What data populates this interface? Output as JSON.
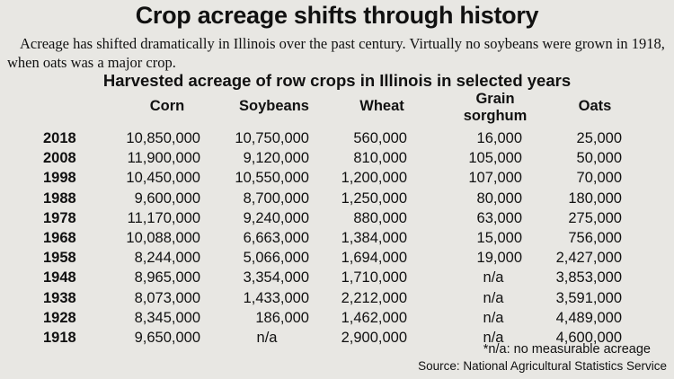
{
  "title": "Crop acreage shifts through history",
  "subtitle": "Acreage has shifted dramatically in Illinois over the past century. Virtually no soybeans were grown in 1918, when oats was a major crop.",
  "chart_data": {
    "type": "table",
    "title": "Harvested acreage of row crops in Illinois in selected years",
    "columns": [
      "Corn",
      "Soybeans",
      "Wheat",
      "Grain sorghum",
      "Oats"
    ],
    "rows": [
      {
        "year": "2018",
        "values": [
          "10,850,000",
          "10,750,000",
          "560,000",
          "16,000",
          "25,000"
        ]
      },
      {
        "year": "2008",
        "values": [
          "11,900,000",
          "9,120,000",
          "810,000",
          "105,000",
          "50,000"
        ]
      },
      {
        "year": "1998",
        "values": [
          "10,450,000",
          "10,550,000",
          "1,200,000",
          "107,000",
          "70,000"
        ]
      },
      {
        "year": "1988",
        "values": [
          "9,600,000",
          "8,700,000",
          "1,250,000",
          "80,000",
          "180,000"
        ]
      },
      {
        "year": "1978",
        "values": [
          "11,170,000",
          "9,240,000",
          "880,000",
          "63,000",
          "275,000"
        ]
      },
      {
        "year": "1968",
        "values": [
          "10,088,000",
          "6,663,000",
          "1,384,000",
          "15,000",
          "756,000"
        ]
      },
      {
        "year": "1958",
        "values": [
          "8,244,000",
          "5,066,000",
          "1,694,000",
          "19,000",
          "2,427,000"
        ]
      },
      {
        "year": "1948",
        "values": [
          "8,965,000",
          "3,354,000",
          "1,710,000",
          "n/a",
          "3,853,000"
        ]
      },
      {
        "year": "1938",
        "values": [
          "8,073,000",
          "1,433,000",
          "2,212,000",
          "n/a",
          "3,591,000"
        ]
      },
      {
        "year": "1928",
        "values": [
          "8,345,000",
          "186,000",
          "1,462,000",
          "n/a",
          "4,489,000"
        ]
      },
      {
        "year": "1918",
        "values": [
          "9,650,000",
          "n/a",
          "2,900,000",
          "n/a",
          "4,600,000"
        ]
      }
    ],
    "footnote": "*n/a: no measurable acreage",
    "source": "Source: National Agricultural Statistics Service"
  }
}
